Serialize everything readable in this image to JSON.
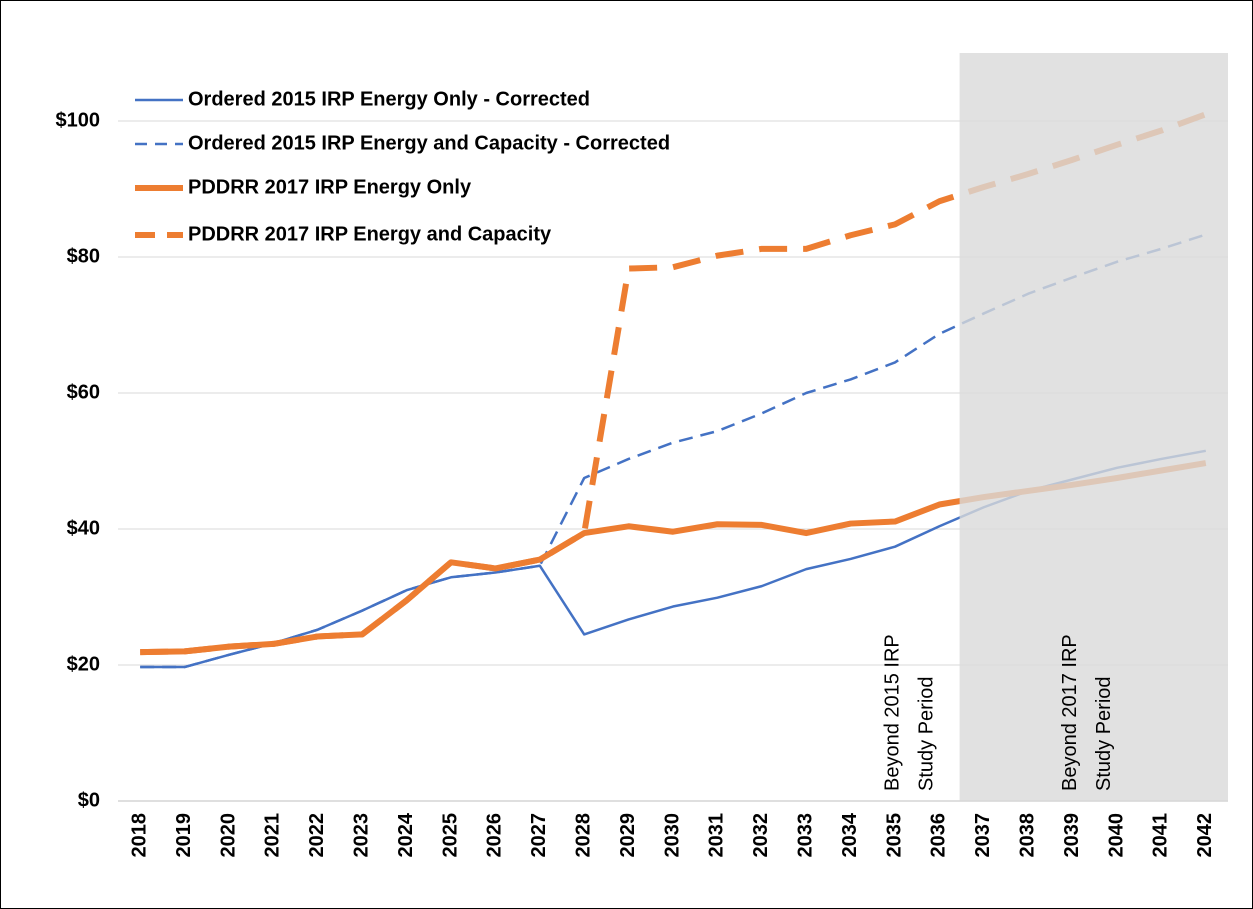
{
  "chart_data": {
    "type": "line",
    "categories": [
      "2018",
      "2019",
      "2020",
      "2021",
      "2022",
      "2023",
      "2024",
      "2025",
      "2026",
      "2027",
      "2028",
      "2029",
      "2030",
      "2031",
      "2032",
      "2033",
      "2034",
      "2035",
      "2036",
      "2037",
      "2038",
      "2039",
      "2040",
      "2041",
      "2042"
    ],
    "series": [
      {
        "name": "Ordered 2015 IRP Energy Only - Corrected",
        "color": "#4472c4",
        "line_style": "solid",
        "values": [
          19.7,
          19.7,
          21.5,
          23.2,
          25.2,
          28.0,
          31.0,
          32.9,
          33.6,
          34.6,
          24.5,
          26.7,
          28.6,
          29.9,
          31.6,
          34.1,
          35.6,
          37.4,
          40.4,
          43.2,
          45.6,
          47.3,
          49.0,
          50.3,
          51.5
        ]
      },
      {
        "name": "Ordered 2015 IRP Energy and Capacity - Corrected",
        "color": "#4472c4",
        "line_style": "dashed",
        "values": [
          19.7,
          19.7,
          21.5,
          23.2,
          25.2,
          28.0,
          31.0,
          32.9,
          33.6,
          34.6,
          47.5,
          50.3,
          52.7,
          54.4,
          57.0,
          60.0,
          62.0,
          64.5,
          68.7,
          71.7,
          74.6,
          77.0,
          79.3,
          81.2,
          83.3
        ]
      },
      {
        "name": "PDDRR 2017 IRP Energy Only",
        "color": "#ed7d31",
        "line_style": "solid",
        "values": [
          21.9,
          22.0,
          22.7,
          23.1,
          24.2,
          24.5,
          29.5,
          35.1,
          34.2,
          35.5,
          39.4,
          40.4,
          39.6,
          40.7,
          40.6,
          39.4,
          40.8,
          41.1,
          43.6,
          44.7,
          45.6,
          46.5,
          47.5,
          48.6,
          49.7
        ]
      },
      {
        "name": "PDDRR 2017 IRP Energy and Capacity",
        "color": "#ed7d31",
        "line_style": "dashed",
        "values": [
          21.9,
          22.0,
          22.7,
          23.1,
          24.2,
          24.5,
          29.5,
          35.1,
          34.2,
          35.5,
          39.4,
          78.3,
          78.5,
          80.2,
          81.2,
          81.2,
          83.2,
          84.8,
          88.2,
          90.3,
          92.2,
          94.3,
          96.5,
          98.6,
          101.0
        ]
      }
    ],
    "ylim": [
      0,
      110
    ],
    "yticks": [
      {
        "value": 0,
        "label": "$0"
      },
      {
        "value": 20,
        "label": "$20"
      },
      {
        "value": 40,
        "label": "$40"
      },
      {
        "value": 60,
        "label": "$60"
      },
      {
        "value": 80,
        "label": "$80"
      },
      {
        "value": 100,
        "label": "$100"
      }
    ],
    "grid": true,
    "legend": "upper left",
    "annotations": [
      [
        "Beyond 2015 IRP",
        "Study Period"
      ],
      [
        "Beyond 2017 IRP",
        "Study Period"
      ]
    ]
  }
}
